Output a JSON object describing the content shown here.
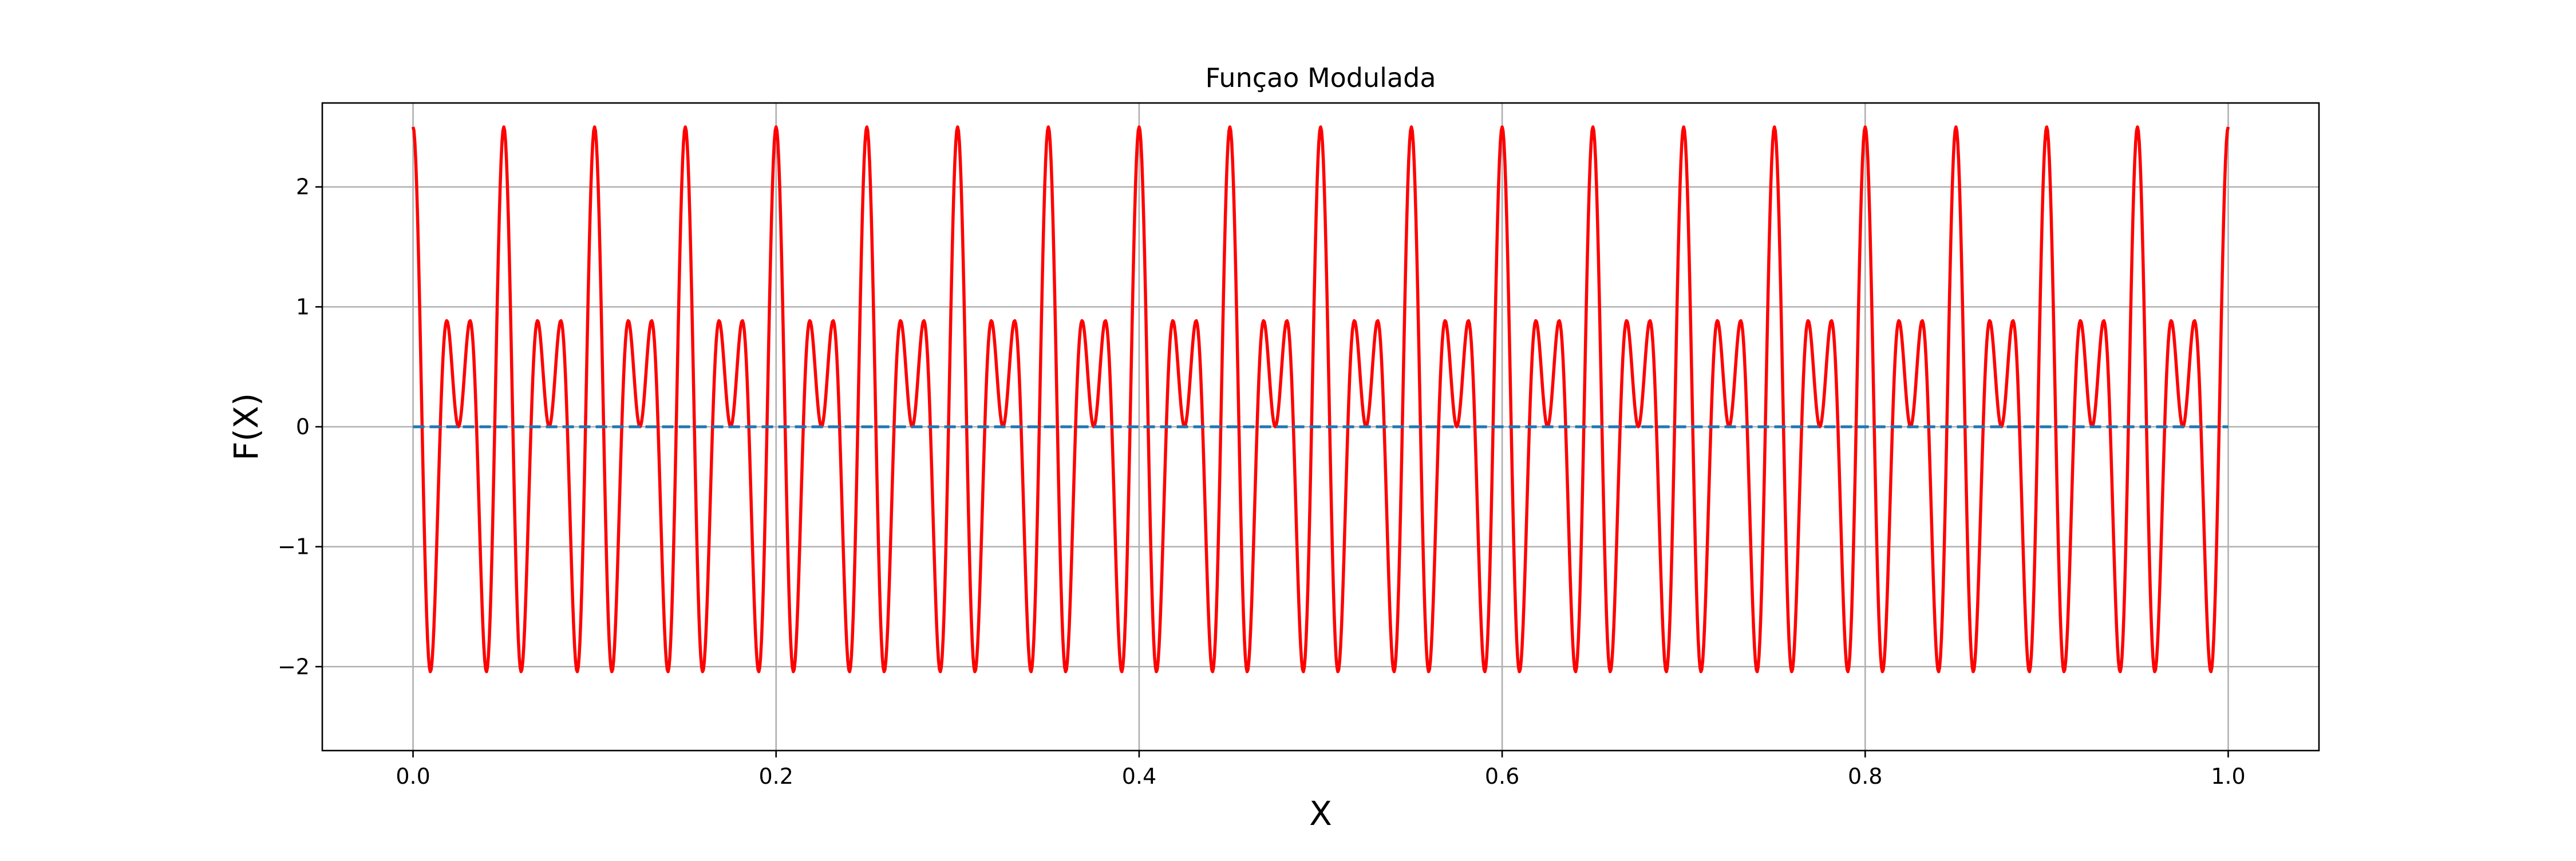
{
  "chart_data": {
    "type": "line",
    "title": "Funçao Modulada",
    "xlabel": "X",
    "ylabel": "F(X)",
    "xlim": [
      -0.05,
      1.05
    ],
    "ylim": [
      -2.7,
      2.7
    ],
    "grid": true,
    "x_ticks": [
      0.0,
      0.2,
      0.4,
      0.6,
      0.8,
      1.0
    ],
    "x_tick_labels": [
      "0.0",
      "0.2",
      "0.4",
      "0.6",
      "0.8",
      "1.0"
    ],
    "y_ticks": [
      -2,
      -1,
      0,
      1,
      2
    ],
    "y_tick_labels": [
      "−2",
      "−1",
      "0",
      "1",
      "2"
    ],
    "series": [
      {
        "color": "#ff0000",
        "style": "solid",
        "function": "2.5*cos(2*pi*10*x)*cos(2*pi*50*x)",
        "x_range": [
          0,
          1
        ],
        "samples": 2000
      },
      {
        "color": "#1f77b4",
        "style": "dashed",
        "x": [
          0,
          1
        ],
        "y": [
          0,
          0
        ]
      }
    ]
  }
}
